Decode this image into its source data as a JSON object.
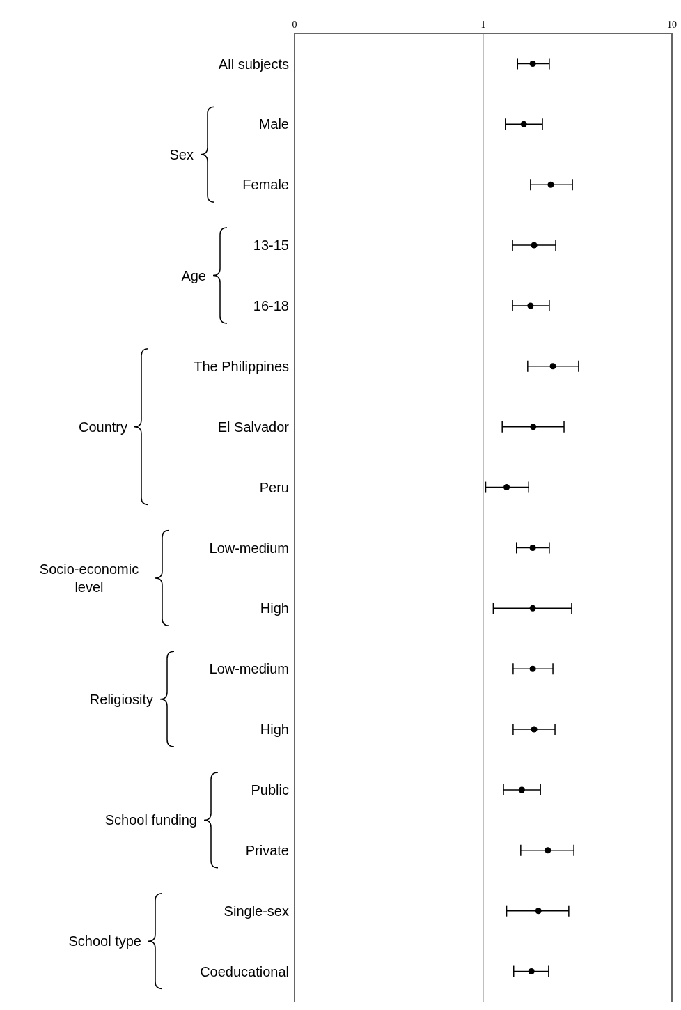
{
  "chart_data": {
    "type": "scatter",
    "categories": [
      "All subjects",
      "Male",
      "Female",
      "13-15",
      "16-18",
      "The Philippines",
      "El Salvador",
      "Peru",
      "Low-medium",
      "High",
      "Low-medium",
      "High",
      "Public",
      "Private",
      "Single-sex",
      "Coeducational"
    ],
    "series": [
      {
        "color": "#000000",
        "values": [
          1.83,
          1.64,
          2.28,
          1.86,
          1.78,
          2.34,
          1.84,
          1.33,
          1.83,
          1.83,
          1.83,
          1.86,
          1.6,
          2.2,
          1.96,
          1.8
        ],
        "errors": [
          [
            1.52,
            2.24
          ],
          [
            1.31,
            2.06
          ],
          [
            1.78,
            2.97
          ],
          [
            1.43,
            2.42
          ],
          [
            1.43,
            2.24
          ],
          [
            1.72,
            3.2
          ],
          [
            1.26,
            2.68
          ],
          [
            1.03,
            1.74
          ],
          [
            1.5,
            2.24
          ],
          [
            1.13,
            2.94
          ],
          [
            1.44,
            2.34
          ],
          [
            1.44,
            2.4
          ],
          [
            1.28,
            2.01
          ],
          [
            1.58,
            3.02
          ],
          [
            1.33,
            2.84
          ],
          [
            1.45,
            2.22
          ]
        ]
      }
    ],
    "xlim": [
      0.1,
      10
    ],
    "xticks": [
      {
        "value": 0.1,
        "label": "0"
      },
      1,
      10
    ],
    "log": "x",
    "ref_lines": [
      {
        "axis": "x",
        "value": 1,
        "color": "#aaaaaa"
      }
    ],
    "annotations": [
      "Sex",
      "Age",
      "Country",
      "Socio-economic level",
      "Religiosity",
      "School funding",
      "School type"
    ],
    "orientation": "horizontal",
    "marker": "circle",
    "grid": false
  }
}
